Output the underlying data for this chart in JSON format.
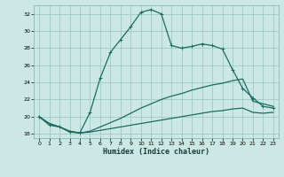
{
  "xlabel": "Humidex (Indice chaleur)",
  "bg_color": "#cce8e4",
  "grid_color": "#9eccc6",
  "line_color": "#1a6b61",
  "xlim": [
    -0.5,
    23.5
  ],
  "ylim": [
    17.5,
    33.0
  ],
  "xticks": [
    0,
    1,
    2,
    3,
    4,
    5,
    6,
    7,
    8,
    9,
    10,
    11,
    12,
    13,
    14,
    15,
    16,
    17,
    18,
    19,
    20,
    21,
    22,
    23
  ],
  "yticks": [
    18,
    20,
    22,
    24,
    26,
    28,
    30,
    32
  ],
  "line1_x": [
    0,
    1,
    2,
    3,
    4,
    5,
    6,
    7,
    8,
    9,
    10,
    11,
    12,
    13,
    14,
    15,
    16,
    17,
    18,
    19,
    20,
    21,
    22,
    23
  ],
  "line1_y": [
    20.0,
    19.0,
    18.8,
    18.2,
    18.1,
    20.5,
    24.5,
    27.5,
    29.0,
    30.5,
    32.2,
    32.5,
    32.0,
    28.3,
    28.0,
    28.2,
    28.5,
    28.3,
    27.9,
    25.5,
    23.3,
    22.2,
    21.2,
    21.0
  ],
  "line2_x": [
    0,
    1,
    2,
    3,
    4,
    5,
    6,
    7,
    8,
    9,
    10,
    11,
    12,
    13,
    14,
    15,
    16,
    17,
    18,
    19,
    20,
    21,
    22,
    23
  ],
  "line2_y": [
    20.0,
    19.2,
    18.8,
    18.3,
    18.1,
    18.3,
    18.8,
    19.3,
    19.8,
    20.4,
    21.0,
    21.5,
    22.0,
    22.4,
    22.7,
    23.1,
    23.4,
    23.7,
    23.9,
    24.2,
    24.4,
    21.8,
    21.5,
    21.2
  ],
  "line3_x": [
    0,
    1,
    2,
    3,
    4,
    5,
    6,
    7,
    8,
    9,
    10,
    11,
    12,
    13,
    14,
    15,
    16,
    17,
    18,
    19,
    20,
    21,
    22,
    23
  ],
  "line3_y": [
    20.0,
    19.2,
    18.8,
    18.3,
    18.1,
    18.2,
    18.4,
    18.6,
    18.8,
    19.0,
    19.2,
    19.4,
    19.6,
    19.8,
    20.0,
    20.2,
    20.4,
    20.6,
    20.7,
    20.9,
    21.0,
    20.5,
    20.4,
    20.5
  ]
}
